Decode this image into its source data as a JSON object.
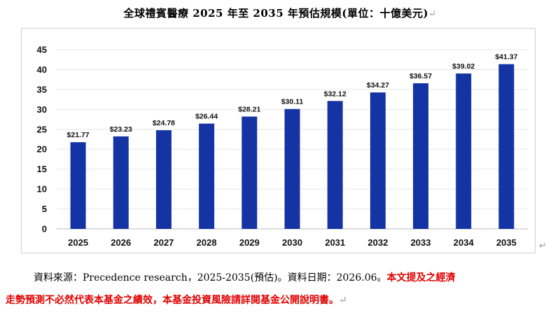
{
  "title": "全球禮賓醫療 2025 年至 2035 年預估規模(單位：十億美元)",
  "paragraph_mark": "↵",
  "footnote": {
    "source": "資料來源：Precedence research，2025-2035(預估)。資料日期：2026.06。",
    "disclaimer_line1": "本文提及之經濟",
    "disclaimer_line2": "走勢預測不必然代表本基金之績效，本基金投資風險請詳閱基金公開說明書。"
  },
  "colors": {
    "bar": "#1434a4",
    "gridline": "#e6e6e6",
    "axis": "#bdbdbd",
    "disclaimer": "#e00000"
  },
  "chart_data": {
    "type": "bar",
    "title": "全球禮賓醫療 2025 年至 2035 年預估規模(單位：十億美元)",
    "categories": [
      "2025",
      "2026",
      "2027",
      "2028",
      "2029",
      "2030",
      "2031",
      "2032",
      "2033",
      "2034",
      "2035"
    ],
    "values": [
      21.77,
      23.23,
      24.78,
      26.44,
      28.21,
      30.11,
      32.12,
      34.27,
      36.57,
      39.02,
      41.37
    ],
    "data_labels": [
      "$21.77",
      "$23.23",
      "$24.78",
      "$26.44",
      "$28.21",
      "$30.11",
      "$32.12",
      "$34.27",
      "$36.57",
      "$39.02",
      "$41.37"
    ],
    "ylim": [
      0,
      45
    ],
    "yticks": [
      "0",
      "5",
      "10",
      "15",
      "20",
      "25",
      "30",
      "35",
      "40",
      "45"
    ],
    "xlabel": "",
    "ylabel": "",
    "grid": true,
    "legend": "none"
  }
}
